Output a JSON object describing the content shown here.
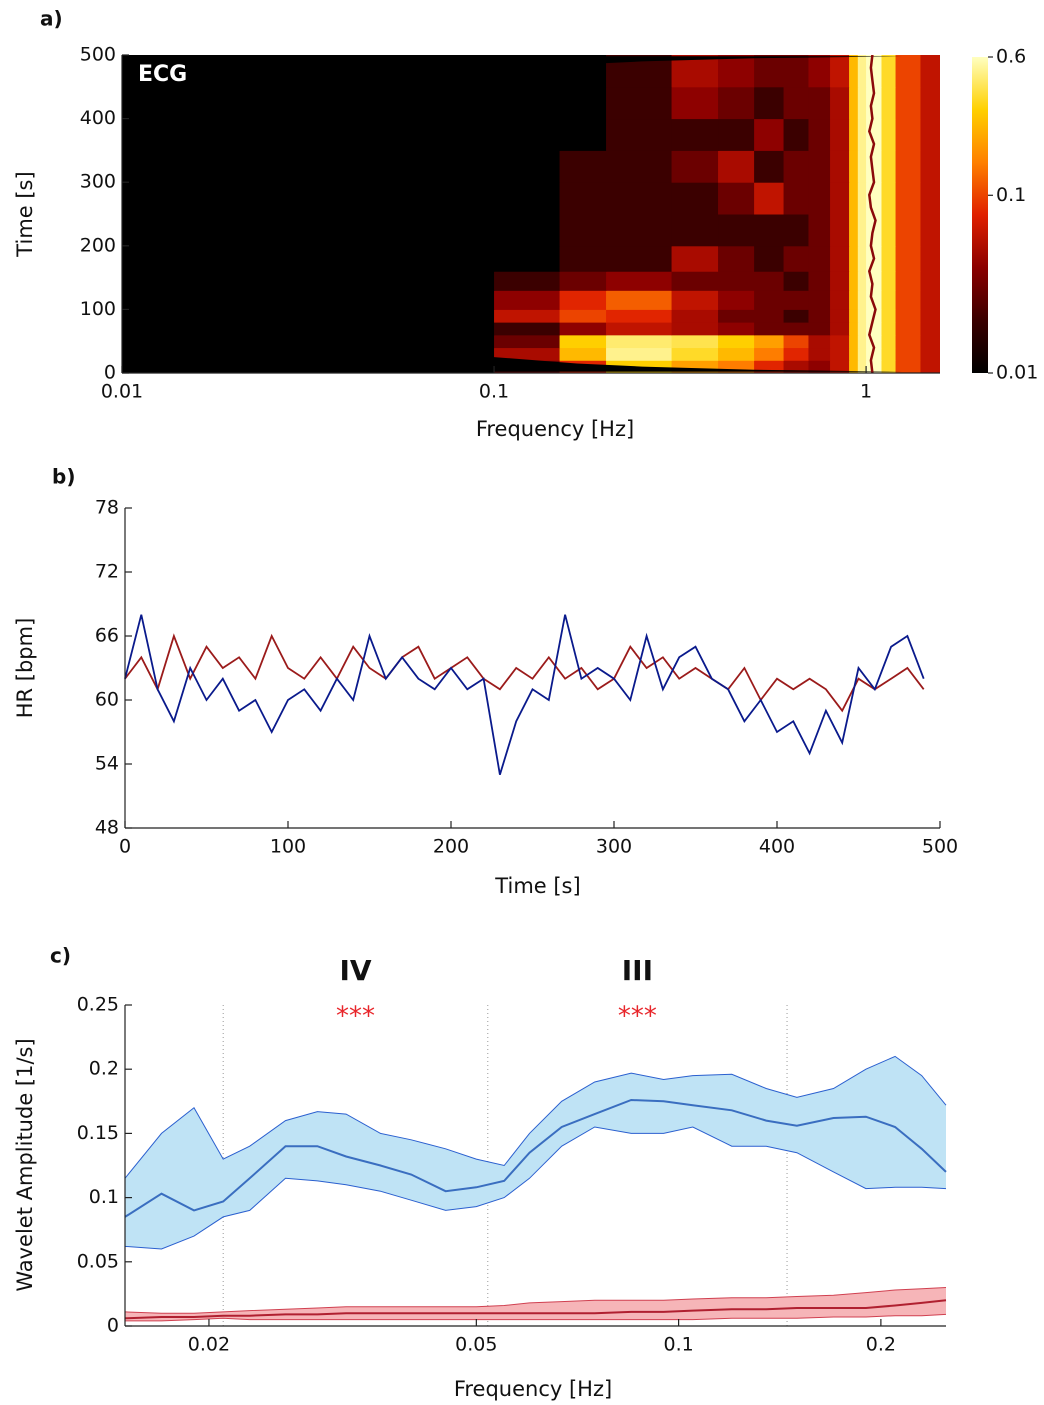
{
  "chart_data": [
    {
      "type": "heatmap",
      "panel_label": "a)",
      "annotation": "ECG",
      "xlabel": "Frequency [Hz]",
      "ylabel": "Time [s]",
      "xscale": "log",
      "xlim": [
        0.01,
        1.58
      ],
      "xticks": [
        0.01,
        0.1,
        1
      ],
      "ylim": [
        0,
        500
      ],
      "yticks": [
        0,
        100,
        200,
        300,
        400,
        500
      ],
      "xbins": [
        0.01,
        0.1,
        0.15,
        0.2,
        0.3,
        0.4,
        0.5,
        0.6,
        0.7,
        0.8,
        0.9,
        0.95,
        1.0,
        1.1,
        1.2,
        1.4,
        1.58
      ],
      "ybins": [
        0,
        20,
        40,
        60,
        80,
        100,
        130,
        160,
        200,
        250,
        300,
        350,
        400,
        450,
        500
      ],
      "z": [
        [
          0.01,
          0.03,
          0.08,
          0.3,
          0.2,
          0.15,
          0.08,
          0.05,
          0.04,
          0.06,
          0.25,
          0.5,
          0.6,
          0.35,
          0.1,
          0.06
        ],
        [
          0.01,
          0.05,
          0.25,
          0.5,
          0.35,
          0.25,
          0.15,
          0.08,
          0.05,
          0.06,
          0.25,
          0.5,
          0.6,
          0.35,
          0.1,
          0.06
        ],
        [
          0.01,
          0.03,
          0.3,
          0.45,
          0.4,
          0.3,
          0.2,
          0.1,
          0.05,
          0.06,
          0.25,
          0.5,
          0.6,
          0.35,
          0.1,
          0.06
        ],
        [
          0.01,
          0.02,
          0.04,
          0.06,
          0.05,
          0.04,
          0.03,
          0.03,
          0.03,
          0.05,
          0.25,
          0.5,
          0.6,
          0.35,
          0.1,
          0.06
        ],
        [
          0.01,
          0.06,
          0.1,
          0.08,
          0.05,
          0.03,
          0.03,
          0.02,
          0.03,
          0.05,
          0.25,
          0.5,
          0.6,
          0.35,
          0.1,
          0.06
        ],
        [
          0.01,
          0.04,
          0.08,
          0.12,
          0.06,
          0.04,
          0.03,
          0.03,
          0.03,
          0.05,
          0.25,
          0.5,
          0.6,
          0.35,
          0.1,
          0.06
        ],
        [
          0.01,
          0.02,
          0.03,
          0.04,
          0.03,
          0.03,
          0.03,
          0.02,
          0.03,
          0.05,
          0.25,
          0.5,
          0.6,
          0.35,
          0.1,
          0.06
        ],
        [
          0.01,
          0.01,
          0.02,
          0.02,
          0.05,
          0.03,
          0.02,
          0.03,
          0.03,
          0.05,
          0.25,
          0.5,
          0.6,
          0.35,
          0.1,
          0.06
        ],
        [
          0.01,
          0.01,
          0.02,
          0.02,
          0.02,
          0.02,
          0.02,
          0.02,
          0.03,
          0.05,
          0.25,
          0.5,
          0.6,
          0.35,
          0.1,
          0.06
        ],
        [
          0.01,
          0.01,
          0.02,
          0.02,
          0.02,
          0.03,
          0.06,
          0.03,
          0.03,
          0.05,
          0.25,
          0.5,
          0.6,
          0.35,
          0.1,
          0.06
        ],
        [
          0.01,
          0.01,
          0.02,
          0.02,
          0.03,
          0.05,
          0.02,
          0.03,
          0.03,
          0.05,
          0.25,
          0.5,
          0.6,
          0.35,
          0.1,
          0.06
        ],
        [
          0.01,
          0.01,
          0.01,
          0.02,
          0.02,
          0.02,
          0.04,
          0.02,
          0.03,
          0.05,
          0.25,
          0.5,
          0.6,
          0.35,
          0.1,
          0.06
        ],
        [
          0.01,
          0.01,
          0.01,
          0.02,
          0.04,
          0.03,
          0.02,
          0.03,
          0.03,
          0.05,
          0.25,
          0.5,
          0.6,
          0.35,
          0.1,
          0.06
        ],
        [
          0.01,
          0.01,
          0.01,
          0.02,
          0.05,
          0.04,
          0.03,
          0.03,
          0.04,
          0.06,
          0.25,
          0.5,
          0.6,
          0.35,
          0.1,
          0.06
        ]
      ],
      "colormap": [
        "#000000",
        "#3a0000",
        "#8b0000",
        "#e02000",
        "#ff8000",
        "#ffd000",
        "#ffffc0"
      ],
      "colorbar": {
        "scale": "log",
        "lim": [
          0.01,
          0.6
        ],
        "ticks": [
          0.01,
          0.1,
          0.6
        ]
      },
      "coi": {
        "color": "#000000",
        "time": [
          2,
          5,
          10,
          15,
          25,
          40,
          60,
          100,
          150,
          200,
          250,
          300,
          350,
          400,
          440,
          460,
          475,
          485,
          490,
          495,
          498
        ],
        "frequency": [
          1.25,
          0.5,
          0.25,
          0.167,
          0.1,
          0.0625,
          0.0417,
          0.025,
          0.0167,
          0.0125,
          0.01,
          0.0125,
          0.0167,
          0.025,
          0.0417,
          0.0625,
          0.1,
          0.167,
          0.25,
          0.5,
          1.25
        ]
      },
      "ridge": {
        "color": "#8b0a0a",
        "time": [
          0,
          20,
          40,
          60,
          80,
          100,
          120,
          140,
          160,
          180,
          200,
          220,
          240,
          260,
          280,
          300,
          320,
          340,
          360,
          380,
          400,
          420,
          440,
          460,
          480,
          500
        ],
        "frequency": [
          1.04,
          1.03,
          1.05,
          1.02,
          1.04,
          1.06,
          1.03,
          1.04,
          1.02,
          1.05,
          1.03,
          1.04,
          1.06,
          1.03,
          1.02,
          1.05,
          1.04,
          1.03,
          1.05,
          1.02,
          1.04,
          1.03,
          1.05,
          1.04,
          1.03,
          1.04
        ]
      }
    },
    {
      "type": "line",
      "panel_label": "b)",
      "xlabel": "Time [s]",
      "ylabel": "HR [bpm]",
      "xlim": [
        0,
        500
      ],
      "xticks": [
        0,
        100,
        200,
        300,
        400,
        500
      ],
      "ylim": [
        48,
        78
      ],
      "yticks": [
        48,
        54,
        60,
        66,
        72,
        78
      ],
      "x": [
        0,
        10,
        20,
        30,
        40,
        50,
        60,
        70,
        80,
        90,
        100,
        110,
        120,
        130,
        140,
        150,
        160,
        170,
        180,
        190,
        200,
        210,
        220,
        230,
        240,
        250,
        260,
        270,
        280,
        290,
        300,
        310,
        320,
        330,
        340,
        350,
        360,
        370,
        380,
        390,
        400,
        410,
        420,
        430,
        440,
        450,
        460,
        470,
        480,
        490
      ],
      "series": [
        {
          "color": "#9b1b1b",
          "values": [
            62,
            64,
            61,
            66,
            62,
            65,
            63,
            64,
            62,
            66,
            63,
            62,
            64,
            62,
            65,
            63,
            62,
            64,
            65,
            62,
            63,
            64,
            62,
            61,
            63,
            62,
            64,
            62,
            63,
            61,
            62,
            65,
            63,
            64,
            62,
            63,
            62,
            61,
            63,
            60,
            62,
            61,
            62,
            61,
            59,
            62,
            61,
            62,
            63,
            61
          ]
        },
        {
          "color": "#0a1a8c",
          "values": [
            62,
            68,
            61,
            58,
            63,
            60,
            62,
            59,
            60,
            57,
            60,
            61,
            59,
            62,
            60,
            66,
            62,
            64,
            62,
            61,
            63,
            61,
            62,
            53,
            58,
            61,
            60,
            68,
            62,
            63,
            62,
            60,
            66,
            61,
            64,
            65,
            62,
            61,
            58,
            60,
            57,
            58,
            55,
            59,
            56,
            63,
            61,
            65,
            66,
            62
          ]
        }
      ]
    },
    {
      "type": "band",
      "panel_label": "c)",
      "xlabel": "Frequency [Hz]",
      "ylabel": "Wavelet Amplitude [1/s]",
      "xscale": "log",
      "xlim": [
        0.015,
        0.25
      ],
      "xticks": [
        0.02,
        0.05,
        0.1,
        0.2
      ],
      "ylim": [
        0,
        0.25
      ],
      "yticks": [
        0,
        0.05,
        0.1,
        0.15,
        0.2,
        0.25
      ],
      "intervals": [
        {
          "label": "IV",
          "significance": "***",
          "from": 0.021,
          "to": 0.052
        },
        {
          "label": "III",
          "significance": "***",
          "from": 0.052,
          "to": 0.145
        }
      ],
      "significance_color": "#e8262b",
      "x": [
        0.015,
        0.017,
        0.019,
        0.021,
        0.023,
        0.026,
        0.029,
        0.032,
        0.036,
        0.04,
        0.045,
        0.05,
        0.055,
        0.06,
        0.067,
        0.075,
        0.085,
        0.095,
        0.105,
        0.12,
        0.135,
        0.15,
        0.17,
        0.19,
        0.21,
        0.23,
        0.25
      ],
      "series": [
        {
          "color": "#3a6ec0",
          "fill": "#bfe3f5",
          "edge": "#2a5fcf",
          "values": [
            0.085,
            0.103,
            0.09,
            0.097,
            0.115,
            0.14,
            0.14,
            0.132,
            0.125,
            0.118,
            0.105,
            0.108,
            0.113,
            0.135,
            0.155,
            0.165,
            0.176,
            0.175,
            0.172,
            0.168,
            0.16,
            0.156,
            0.162,
            0.163,
            0.155,
            0.138,
            0.12
          ],
          "upper": [
            0.115,
            0.15,
            0.17,
            0.13,
            0.14,
            0.16,
            0.167,
            0.165,
            0.15,
            0.145,
            0.138,
            0.13,
            0.125,
            0.15,
            0.175,
            0.19,
            0.197,
            0.192,
            0.195,
            0.196,
            0.185,
            0.178,
            0.185,
            0.2,
            0.21,
            0.195,
            0.172
          ],
          "lower": [
            0.062,
            0.06,
            0.07,
            0.085,
            0.09,
            0.115,
            0.113,
            0.11,
            0.105,
            0.098,
            0.09,
            0.093,
            0.1,
            0.115,
            0.14,
            0.155,
            0.15,
            0.15,
            0.155,
            0.14,
            0.14,
            0.135,
            0.12,
            0.107,
            0.108,
            0.108,
            0.107
          ]
        },
        {
          "color": "#b02030",
          "fill": "#f6b5b8",
          "edge": "#d04050",
          "values": [
            0.006,
            0.007,
            0.007,
            0.008,
            0.008,
            0.009,
            0.009,
            0.01,
            0.01,
            0.01,
            0.01,
            0.01,
            0.01,
            0.01,
            0.01,
            0.01,
            0.011,
            0.011,
            0.012,
            0.013,
            0.013,
            0.014,
            0.014,
            0.014,
            0.016,
            0.018,
            0.02
          ],
          "upper": [
            0.011,
            0.01,
            0.01,
            0.011,
            0.012,
            0.013,
            0.014,
            0.015,
            0.015,
            0.015,
            0.015,
            0.015,
            0.016,
            0.018,
            0.019,
            0.02,
            0.02,
            0.02,
            0.021,
            0.022,
            0.022,
            0.023,
            0.024,
            0.026,
            0.028,
            0.029,
            0.03
          ],
          "lower": [
            0.004,
            0.004,
            0.005,
            0.006,
            0.005,
            0.005,
            0.005,
            0.005,
            0.005,
            0.005,
            0.005,
            0.005,
            0.005,
            0.005,
            0.005,
            0.005,
            0.005,
            0.005,
            0.005,
            0.006,
            0.006,
            0.006,
            0.007,
            0.007,
            0.008,
            0.008,
            0.009
          ]
        }
      ]
    }
  ]
}
